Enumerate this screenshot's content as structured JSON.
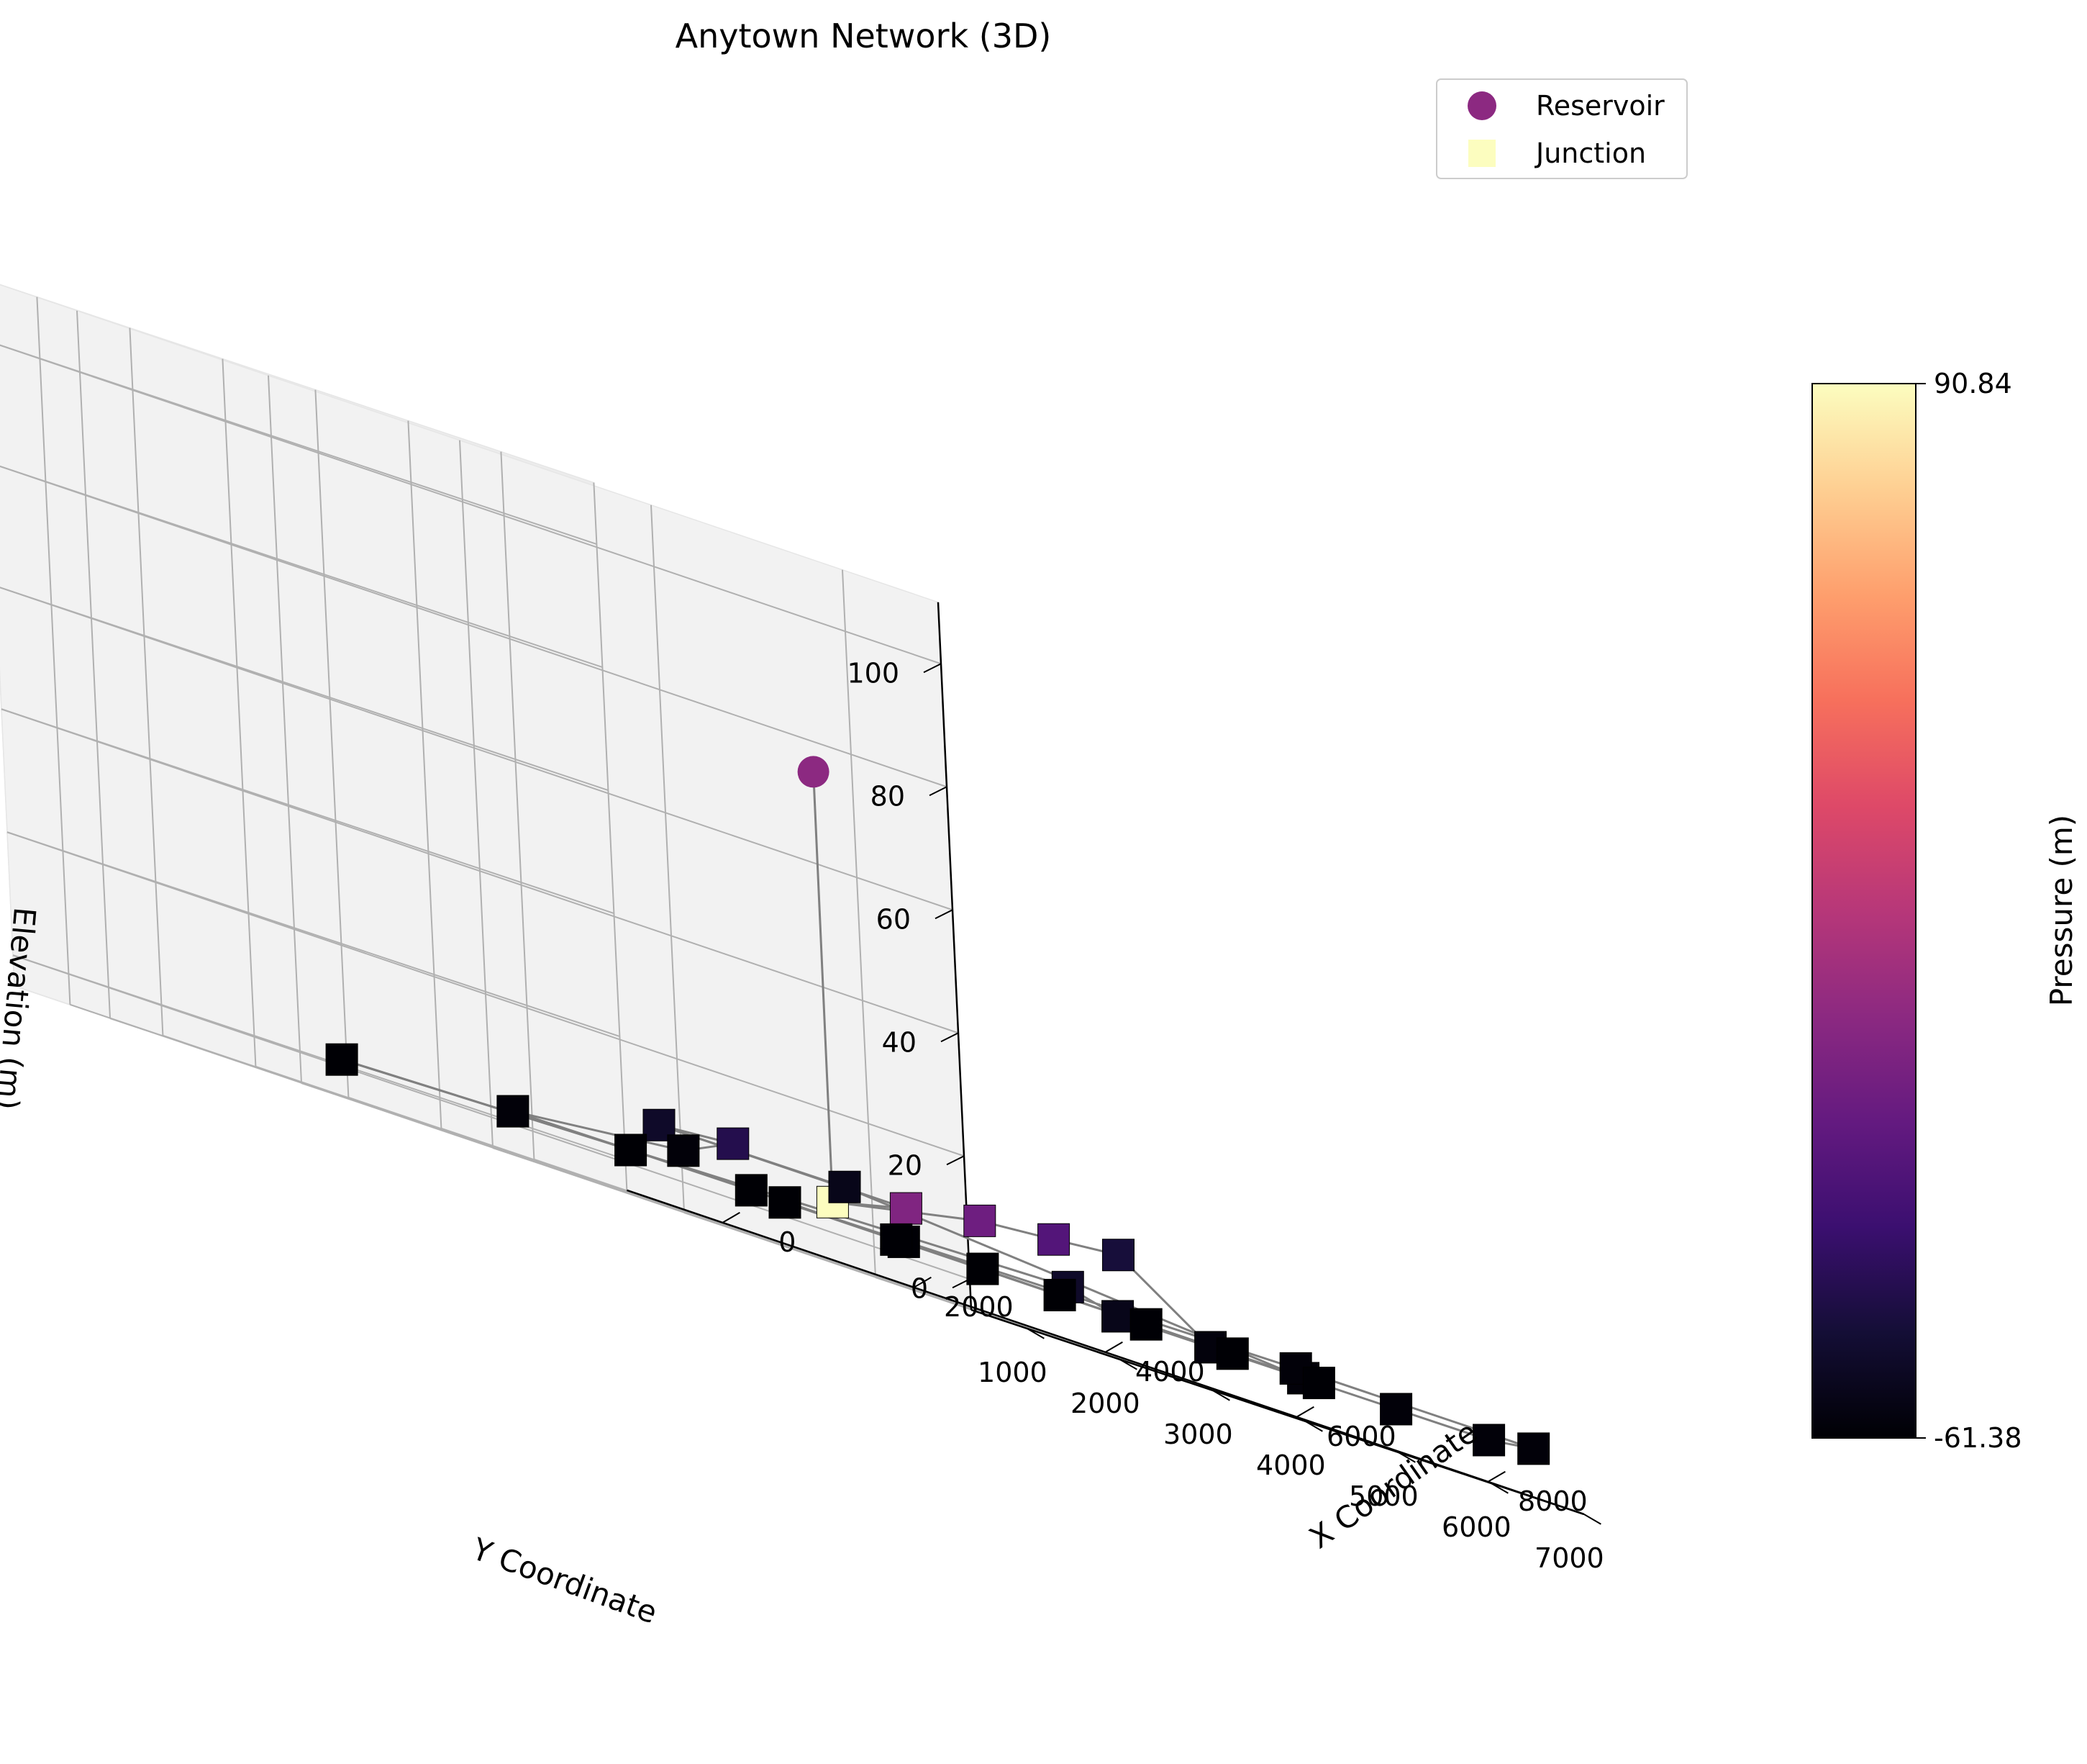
{
  "chart_data": {
    "type": "scatter",
    "projection": "3d",
    "title": "Anytown Network (3D)",
    "xlabel": "X Coordinate",
    "ylabel": "Y Coordinate",
    "zlabel": "Elevation (m)",
    "xlim": [
      -1000,
      9000
    ],
    "ylim": [
      400,
      7000
    ],
    "zlim": [
      -5,
      110
    ],
    "x_ticks": [
      0,
      2000,
      4000,
      6000,
      8000
    ],
    "y_ticks": [
      1000,
      2000,
      3000,
      4000,
      5000,
      6000,
      7000
    ],
    "z_ticks": [
      0,
      20,
      40,
      60,
      80,
      100
    ],
    "grid": true,
    "legend": {
      "placement": "top-right",
      "entries": [
        {
          "label": "Reservoir",
          "marker": "circle",
          "color": "#8c2981"
        },
        {
          "label": "Junction",
          "marker": "square",
          "color": "#fcfdbf"
        }
      ]
    },
    "colorbar": {
      "label": "Pressure (m)",
      "min": -61.38,
      "max": 90.84,
      "min_label": "-61.38",
      "max_label": "90.84",
      "colormap": "magma"
    },
    "series": [
      {
        "name": "Reservoir",
        "marker": "circle",
        "points": [
          {
            "x": 7300,
            "y": 700,
            "z": 75
          }
        ]
      },
      {
        "name": "Junction",
        "marker": "square",
        "points": [
          {
            "x": 7000,
            "y": 1000,
            "z": 5,
            "pressure": 90.84
          },
          {
            "x": 7000,
            "y": 1800,
            "z": 8,
            "pressure": -5
          },
          {
            "x": 7000,
            "y": 2600,
            "z": 10,
            "pressure": -12
          },
          {
            "x": 7000,
            "y": 3400,
            "z": 11,
            "pressure": -22
          },
          {
            "x": 7000,
            "y": 4100,
            "z": 12,
            "pressure": -45
          },
          {
            "x": 8000,
            "y": 2500,
            "z": 4,
            "pressure": -50
          },
          {
            "x": 9000,
            "y": 2000,
            "z": 2,
            "pressure": -55
          },
          {
            "x": 9000,
            "y": 3000,
            "z": 2,
            "pressure": -59
          },
          {
            "x": 9000,
            "y": 4000,
            "z": 2,
            "pressure": -60
          },
          {
            "x": 9000,
            "y": 5000,
            "z": 2,
            "pressure": -60
          },
          {
            "x": 9000,
            "y": 6000,
            "z": 2,
            "pressure": -60
          },
          {
            "x": 8500,
            "y": 7000,
            "z": 3,
            "pressure": -60
          },
          {
            "x": 6500,
            "y": 6500,
            "z": 3,
            "pressure": -60
          },
          {
            "x": 5000,
            "y": 1200,
            "z": 8,
            "pressure": -50
          },
          {
            "x": 5000,
            "y": 2000,
            "z": 9,
            "pressure": -40
          },
          {
            "x": 5000,
            "y": 3200,
            "z": 8,
            "pressure": -55
          },
          {
            "x": 3500,
            "y": 3000,
            "z": 5,
            "pressure": -60
          },
          {
            "x": 2000,
            "y": 2700,
            "z": 2,
            "pressure": -60
          },
          {
            "x": 500,
            "y": 2400,
            "z": 1,
            "pressure": -61
          },
          {
            "x": 1000,
            "y": 5000,
            "z": 2,
            "pressure": -61
          },
          {
            "x": 1000,
            "y": 6300,
            "z": 2,
            "pressure": -61
          },
          {
            "x": 2400,
            "y": 6500,
            "z": 2,
            "pressure": -61
          },
          {
            "x": 3000,
            "y": 5800,
            "z": 2,
            "pressure": -61
          },
          {
            "x": 4000,
            "y": 5700,
            "z": 2,
            "pressure": -61
          },
          {
            "x": 5000,
            "y": 5500,
            "z": 2,
            "pressure": -61
          },
          {
            "x": 6000,
            "y": 5400,
            "z": 2,
            "pressure": -61
          },
          {
            "x": 7000,
            "y": 5300,
            "z": 2,
            "pressure": -61
          },
          {
            "x": 8000,
            "y": 5200,
            "z": 2,
            "pressure": -61
          },
          {
            "x": 3000,
            "y": 4600,
            "z": 2,
            "pressure": -61
          }
        ]
      }
    ],
    "links": [
      [
        0,
        1
      ],
      [
        1,
        2
      ],
      [
        1,
        3
      ],
      [
        3,
        4
      ],
      [
        4,
        5
      ],
      [
        5,
        8
      ],
      [
        2,
        14
      ],
      [
        14,
        15
      ],
      [
        15,
        17
      ],
      [
        17,
        18
      ],
      [
        6,
        7
      ],
      [
        7,
        8
      ],
      [
        8,
        9
      ],
      [
        9,
        10
      ],
      [
        10,
        11
      ],
      [
        11,
        12
      ],
      [
        12,
        13
      ],
      [
        14,
        16
      ],
      [
        16,
        9
      ],
      [
        6,
        19
      ],
      [
        19,
        20
      ],
      [
        18,
        20
      ],
      [
        20,
        21
      ],
      [
        21,
        22
      ],
      [
        22,
        23
      ],
      [
        23,
        24
      ],
      [
        24,
        25
      ],
      [
        25,
        26
      ],
      [
        26,
        27
      ],
      [
        27,
        28
      ],
      [
        28,
        29
      ],
      [
        29,
        13
      ]
    ]
  }
}
